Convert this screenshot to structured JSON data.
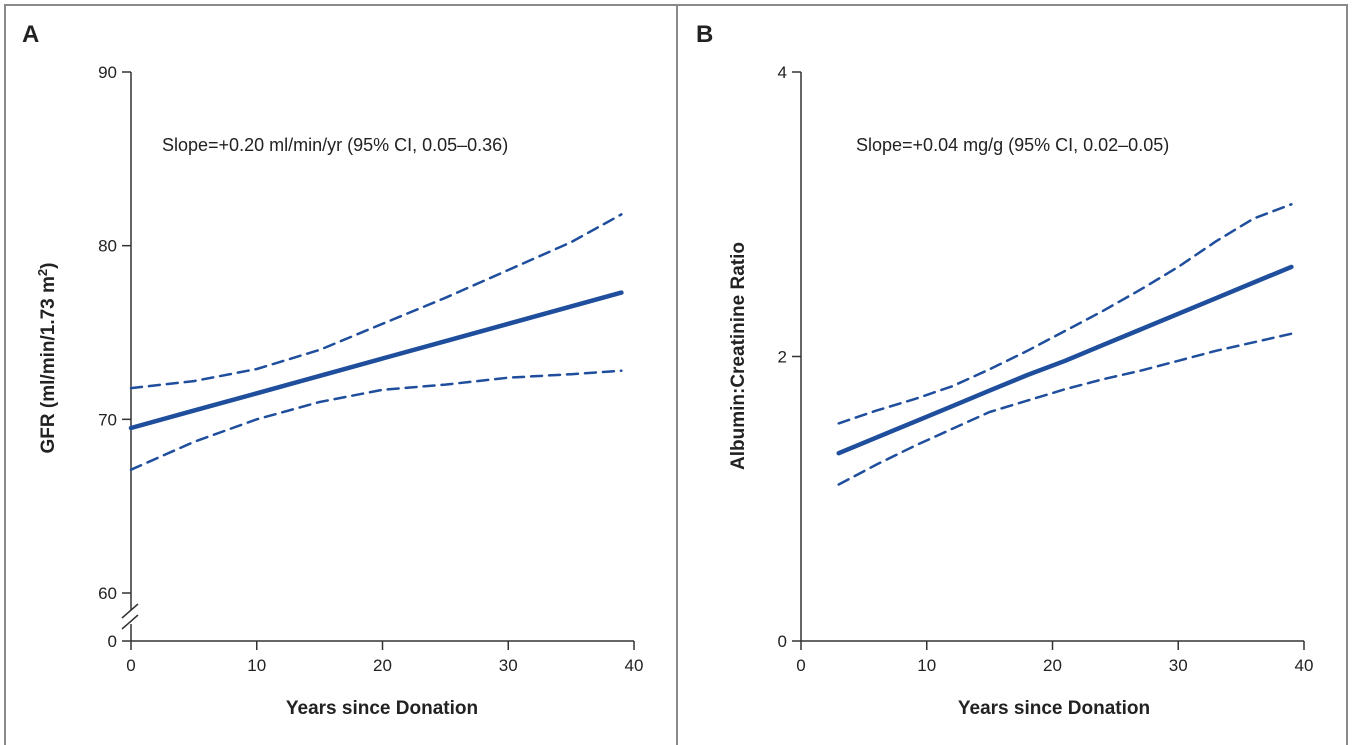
{
  "chart_data": [
    {
      "panel": "A",
      "type": "line",
      "annotation": "Slope=+0.20 ml/min/yr (95% CI, 0.05–0.36)",
      "xlabel": "Years since Donation",
      "ylabel_main": "GFR (ml/min/1.73 m",
      "ylabel_sup": "2",
      "ylabel_end": ")",
      "xlim": [
        0,
        40
      ],
      "ylim": [
        60,
        90
      ],
      "axis_break": true,
      "x_ticks": [
        "0",
        "10",
        "20",
        "30",
        "40"
      ],
      "y_ticks": [
        "60",
        "70",
        "80",
        "90"
      ],
      "y_break_label": "0",
      "colors": {
        "line": "#1f4e9c",
        "axis": "#333333"
      },
      "series": [
        {
          "role": "estimate",
          "style": "solid",
          "x": [
            0,
            5,
            10,
            15,
            20,
            25,
            30,
            35,
            39
          ],
          "y": [
            69.5,
            70.5,
            71.5,
            72.5,
            73.5,
            74.5,
            75.5,
            76.5,
            77.3
          ]
        },
        {
          "role": "upper-ci",
          "style": "dashed",
          "x": [
            0,
            5,
            10,
            15,
            20,
            25,
            30,
            35,
            39
          ],
          "y": [
            71.8,
            72.2,
            72.9,
            74.0,
            75.5,
            77.0,
            78.6,
            80.2,
            81.8
          ]
        },
        {
          "role": "lower-ci",
          "style": "dashed",
          "x": [
            0,
            5,
            10,
            15,
            20,
            25,
            30,
            35,
            39
          ],
          "y": [
            67.1,
            68.7,
            70.0,
            71.0,
            71.7,
            72.0,
            72.4,
            72.6,
            72.8
          ]
        }
      ]
    },
    {
      "panel": "B",
      "type": "line",
      "annotation": "Slope=+0.04 mg/g (95% CI, 0.02–0.05)",
      "xlabel": "Years since Donation",
      "ylabel": "Albumin:Creatinine Ratio",
      "xlim": [
        0,
        40
      ],
      "ylim": [
        0,
        4
      ],
      "x_ticks": [
        "0",
        "10",
        "20",
        "30",
        "40"
      ],
      "y_ticks": [
        "0",
        "2",
        "4"
      ],
      "colors": {
        "line": "#1f4e9c",
        "axis": "#333333"
      },
      "series": [
        {
          "role": "estimate",
          "style": "solid",
          "x": [
            3,
            6,
            9,
            12,
            15,
            18,
            21,
            24,
            27,
            30,
            33,
            36,
            39
          ],
          "y": [
            1.32,
            1.43,
            1.54,
            1.65,
            1.76,
            1.87,
            1.97,
            2.08,
            2.19,
            2.3,
            2.41,
            2.52,
            2.63
          ]
        },
        {
          "role": "upper-ci",
          "style": "dashed",
          "x": [
            3,
            6,
            9,
            12,
            15,
            18,
            21,
            24,
            27,
            30,
            33,
            36,
            39
          ],
          "y": [
            1.53,
            1.62,
            1.7,
            1.79,
            1.91,
            2.04,
            2.18,
            2.32,
            2.47,
            2.63,
            2.81,
            2.97,
            3.07
          ]
        },
        {
          "role": "lower-ci",
          "style": "dashed",
          "x": [
            3,
            6,
            9,
            12,
            15,
            18,
            21,
            24,
            27,
            30,
            33,
            36,
            39
          ],
          "y": [
            1.1,
            1.24,
            1.37,
            1.49,
            1.61,
            1.69,
            1.77,
            1.84,
            1.9,
            1.97,
            2.04,
            2.1,
            2.16
          ]
        }
      ]
    }
  ]
}
